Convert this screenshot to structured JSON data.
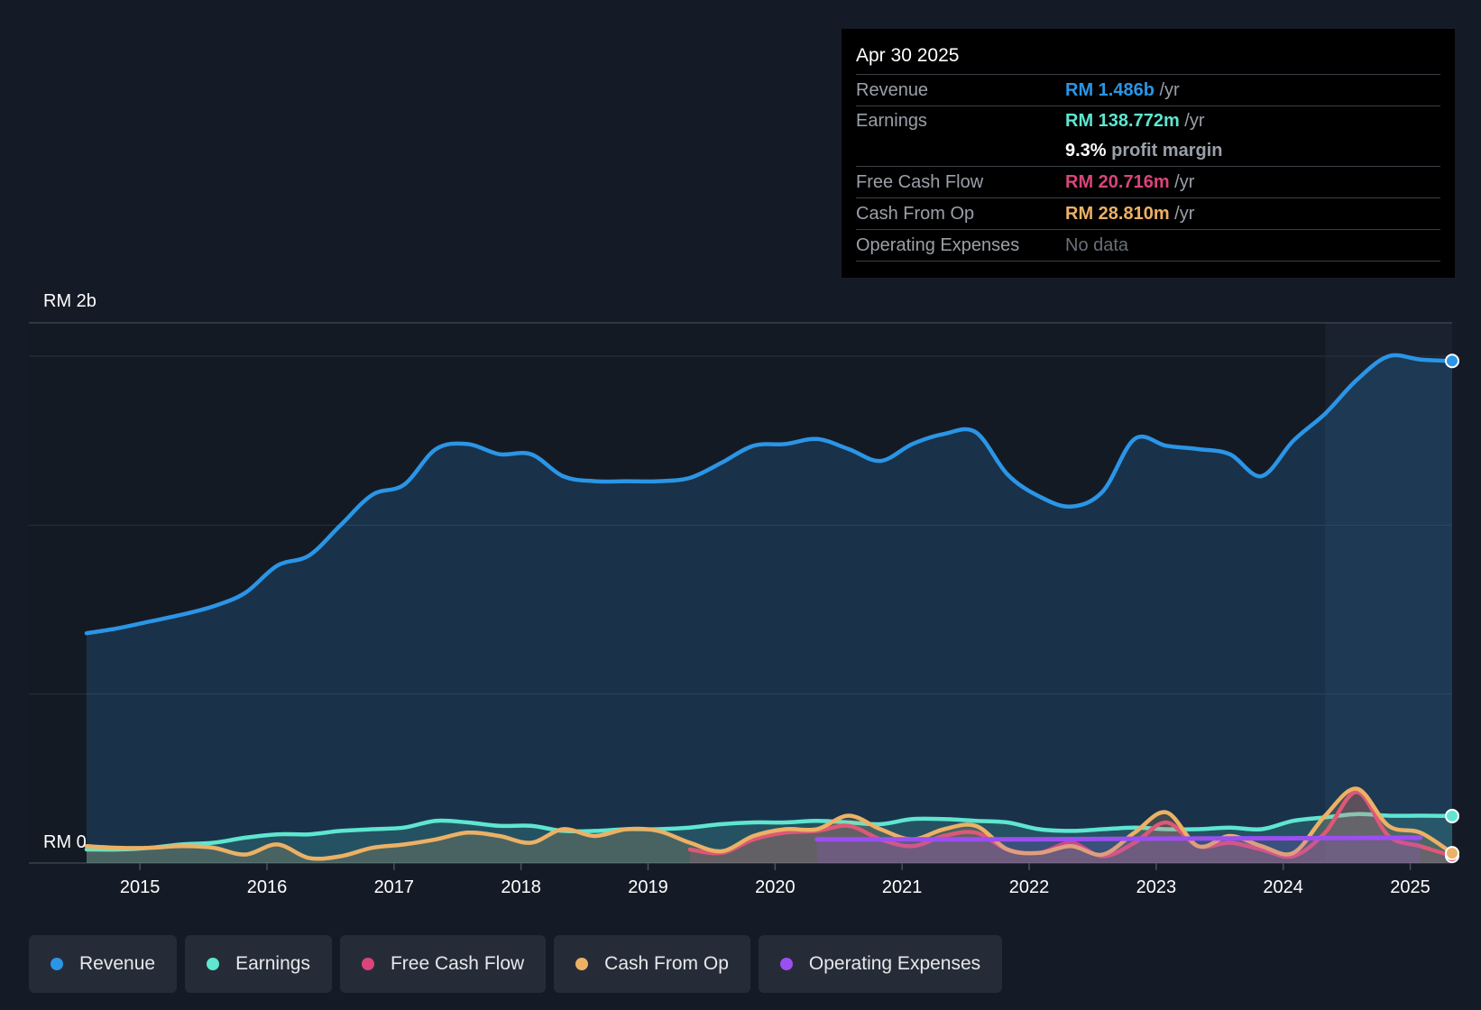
{
  "colors": {
    "revenue": "#2b95e6",
    "earnings": "#5ee6d0",
    "free_cash_flow": "#d9457a",
    "cash_from_op": "#ecb165",
    "operating_expenses": "#9b4ff0",
    "no_data": "#6a7078"
  },
  "tooltip": {
    "date": "Apr 30 2025",
    "rows": [
      {
        "label": "Revenue",
        "value": "RM 1.486b",
        "unit": " /yr"
      },
      {
        "label": "Earnings",
        "value": "RM 138.772m",
        "unit": " /yr"
      },
      {
        "label": "",
        "value": "9.3%",
        "unit": " profit margin"
      },
      {
        "label": "Free Cash Flow",
        "value": "RM 20.716m",
        "unit": " /yr"
      },
      {
        "label": "Cash From Op",
        "value": "RM 28.810m",
        "unit": " /yr"
      },
      {
        "label": "Operating Expenses",
        "value": "No data",
        "unit": ""
      }
    ]
  },
  "legend": [
    {
      "label": "Revenue",
      "color_key": "revenue"
    },
    {
      "label": "Earnings",
      "color_key": "earnings"
    },
    {
      "label": "Free Cash Flow",
      "color_key": "free_cash_flow"
    },
    {
      "label": "Cash From Op",
      "color_key": "cash_from_op"
    },
    {
      "label": "Operating Expenses",
      "color_key": "operating_expenses"
    }
  ],
  "chart_data": {
    "type": "area",
    "title": "",
    "y_labels": {
      "top": "RM 2b",
      "bottom": "RM 0"
    },
    "ylim": [
      0,
      1.6
    ],
    "xlim": [
      2014.58,
      2025.33
    ],
    "x_ticks": [
      "2015",
      "2016",
      "2017",
      "2018",
      "2019",
      "2020",
      "2021",
      "2022",
      "2023",
      "2024",
      "2025"
    ],
    "gridlines": [
      0.5,
      1.0,
      1.5
    ],
    "highlight_from": 2024.33,
    "units": "RM billions",
    "series": [
      {
        "name": "Revenue",
        "color_key": "revenue",
        "filled": true,
        "x": [
          2014.58,
          2014.83,
          2015.08,
          2015.33,
          2015.58,
          2015.83,
          2016.08,
          2016.33,
          2016.58,
          2016.83,
          2017.08,
          2017.33,
          2017.58,
          2017.83,
          2018.08,
          2018.33,
          2018.58,
          2018.83,
          2019.08,
          2019.33,
          2019.58,
          2019.83,
          2020.08,
          2020.33,
          2020.58,
          2020.83,
          2021.08,
          2021.33,
          2021.58,
          2021.83,
          2022.08,
          2022.33,
          2022.58,
          2022.83,
          2023.08,
          2023.33,
          2023.58,
          2023.83,
          2024.08,
          2024.33,
          2024.58,
          2024.83,
          2025.08,
          2025.33
        ],
        "values": [
          0.68,
          0.695,
          0.715,
          0.735,
          0.76,
          0.8,
          0.88,
          0.91,
          1.0,
          1.09,
          1.12,
          1.225,
          1.24,
          1.21,
          1.21,
          1.145,
          1.13,
          1.13,
          1.13,
          1.14,
          1.185,
          1.235,
          1.24,
          1.255,
          1.225,
          1.19,
          1.24,
          1.27,
          1.275,
          1.15,
          1.085,
          1.055,
          1.1,
          1.255,
          1.235,
          1.225,
          1.21,
          1.145,
          1.25,
          1.33,
          1.43,
          1.5,
          1.49,
          1.486
        ]
      },
      {
        "name": "Earnings",
        "color_key": "earnings",
        "filled": true,
        "x": [
          2014.58,
          2014.83,
          2015.08,
          2015.33,
          2015.58,
          2015.83,
          2016.08,
          2016.33,
          2016.58,
          2016.83,
          2017.08,
          2017.33,
          2017.58,
          2017.83,
          2018.08,
          2018.33,
          2018.58,
          2018.83,
          2019.08,
          2019.33,
          2019.58,
          2019.83,
          2020.08,
          2020.33,
          2020.58,
          2020.83,
          2021.08,
          2021.33,
          2021.58,
          2021.83,
          2022.08,
          2022.33,
          2022.58,
          2022.83,
          2023.08,
          2023.33,
          2023.58,
          2023.83,
          2024.08,
          2024.33,
          2024.58,
          2024.83,
          2025.08,
          2025.33
        ],
        "values": [
          0.04,
          0.04,
          0.045,
          0.055,
          0.06,
          0.075,
          0.085,
          0.085,
          0.095,
          0.1,
          0.105,
          0.125,
          0.12,
          0.11,
          0.11,
          0.095,
          0.095,
          0.1,
          0.1,
          0.105,
          0.115,
          0.12,
          0.12,
          0.125,
          0.12,
          0.115,
          0.13,
          0.13,
          0.125,
          0.12,
          0.1,
          0.095,
          0.1,
          0.105,
          0.1,
          0.1,
          0.105,
          0.1,
          0.125,
          0.135,
          0.145,
          0.14,
          0.14,
          0.139
        ]
      },
      {
        "name": "Free Cash Flow",
        "color_key": "free_cash_flow",
        "filled": true,
        "x": [
          2019.33,
          2019.58,
          2019.83,
          2020.08,
          2020.33,
          2020.58,
          2020.83,
          2021.08,
          2021.33,
          2021.58,
          2021.83,
          2022.08,
          2022.33,
          2022.58,
          2022.83,
          2023.08,
          2023.33,
          2023.58,
          2023.83,
          2024.08,
          2024.33,
          2024.58,
          2024.83,
          2025.08,
          2025.33
        ],
        "values": [
          0.04,
          0.03,
          0.07,
          0.09,
          0.095,
          0.11,
          0.07,
          0.05,
          0.08,
          0.09,
          0.04,
          0.03,
          0.06,
          0.02,
          0.06,
          0.12,
          0.05,
          0.06,
          0.04,
          0.02,
          0.09,
          0.21,
          0.08,
          0.05,
          0.021
        ]
      },
      {
        "name": "Cash From Op",
        "color_key": "cash_from_op",
        "filled": true,
        "x": [
          2014.58,
          2014.83,
          2015.08,
          2015.33,
          2015.58,
          2015.83,
          2016.08,
          2016.33,
          2016.58,
          2016.83,
          2017.08,
          2017.33,
          2017.58,
          2017.83,
          2018.08,
          2018.33,
          2018.58,
          2018.83,
          2019.08,
          2019.33,
          2019.58,
          2019.83,
          2020.08,
          2020.33,
          2020.58,
          2020.83,
          2021.08,
          2021.33,
          2021.58,
          2021.83,
          2022.08,
          2022.33,
          2022.58,
          2022.83,
          2023.08,
          2023.33,
          2023.58,
          2023.83,
          2024.08,
          2024.33,
          2024.58,
          2024.83,
          2025.08,
          2025.33
        ],
        "values": [
          0.05,
          0.045,
          0.045,
          0.05,
          0.045,
          0.025,
          0.055,
          0.015,
          0.02,
          0.045,
          0.055,
          0.07,
          0.09,
          0.08,
          0.06,
          0.1,
          0.08,
          0.1,
          0.095,
          0.06,
          0.035,
          0.08,
          0.1,
          0.1,
          0.14,
          0.1,
          0.07,
          0.1,
          0.11,
          0.04,
          0.03,
          0.05,
          0.025,
          0.09,
          0.15,
          0.05,
          0.08,
          0.05,
          0.03,
          0.14,
          0.22,
          0.11,
          0.09,
          0.029
        ]
      },
      {
        "name": "Operating Expenses",
        "color_key": "operating_expenses",
        "filled": true,
        "x": [
          2020.33,
          2021.0,
          2022.0,
          2023.0,
          2024.0,
          2025.08
        ],
        "values": [
          0.07,
          0.07,
          0.07,
          0.072,
          0.073,
          0.075
        ]
      }
    ]
  }
}
